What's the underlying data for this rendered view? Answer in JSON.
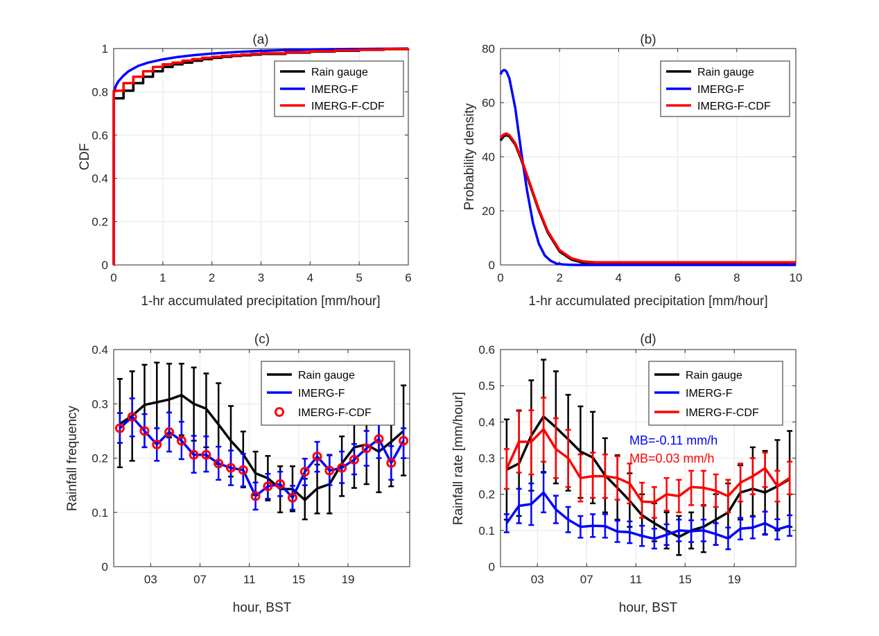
{
  "colors": {
    "gauge": "#000000",
    "imerg": "#0000ff",
    "imerg_cdf": "#ff0000"
  },
  "chart_data": [
    {
      "panel": "a",
      "type": "line",
      "title": "(a)",
      "xlabel": "1-hr accumulated precipitation [mm/hour]",
      "ylabel": "CDF",
      "xlim": [
        0,
        6
      ],
      "ylim": [
        0,
        1
      ],
      "xticks": [
        "0",
        "1",
        "2",
        "3",
        "4",
        "5",
        "6"
      ],
      "yticks": [
        "0",
        "0.2",
        "0.4",
        "0.6",
        "0.8",
        "1"
      ],
      "grid": true,
      "legend": {
        "location": "top-right",
        "entries": [
          "Rain gauge",
          "IMERG-F",
          "IMERG-F-CDF"
        ]
      },
      "series": [
        {
          "name": "Rain gauge",
          "color": "black",
          "step": true,
          "x": [
            0,
            0.001,
            0.2,
            0.2,
            0.4,
            0.6,
            0.8,
            1.0,
            1.2,
            1.4,
            1.6,
            1.8,
            2.0,
            2.2,
            2.4,
            2.6,
            2.8,
            3.0,
            3.5,
            4.0,
            4.5,
            5.0,
            5.5,
            6.0
          ],
          "y": [
            0,
            0.77,
            0.77,
            0.805,
            0.84,
            0.87,
            0.895,
            0.915,
            0.927,
            0.935,
            0.944,
            0.951,
            0.957,
            0.962,
            0.966,
            0.969,
            0.972,
            0.975,
            0.981,
            0.986,
            0.99,
            0.994,
            0.997,
            1.0
          ]
        },
        {
          "name": "IMERG-F",
          "color": "blue",
          "x": [
            0,
            0.001,
            0.05,
            0.1,
            0.2,
            0.3,
            0.5,
            0.7,
            1.0,
            1.3,
            1.6,
            2.0,
            2.5,
            3.0,
            3.5,
            4.0,
            5.0,
            6.0
          ],
          "y": [
            0,
            0.8,
            0.83,
            0.85,
            0.875,
            0.895,
            0.92,
            0.935,
            0.95,
            0.961,
            0.969,
            0.977,
            0.984,
            0.989,
            0.993,
            0.996,
            0.998,
            1.0
          ]
        },
        {
          "name": "IMERG-F-CDF",
          "color": "red",
          "step": true,
          "x": [
            0,
            0.001,
            0.2,
            0.4,
            0.6,
            0.8,
            1.0,
            1.2,
            1.4,
            1.6,
            1.8,
            2.0,
            2.2,
            2.4,
            2.6,
            2.8,
            3.0,
            3.5,
            4.0,
            4.5,
            5.0,
            5.5,
            6.0
          ],
          "y": [
            0,
            0.805,
            0.84,
            0.87,
            0.895,
            0.915,
            0.927,
            0.935,
            0.944,
            0.951,
            0.957,
            0.962,
            0.966,
            0.969,
            0.972,
            0.975,
            0.978,
            0.983,
            0.988,
            0.992,
            0.995,
            0.998,
            1.0
          ]
        }
      ]
    },
    {
      "panel": "b",
      "type": "line",
      "title": "(b)",
      "xlabel": "1-hr accumulated precipitation [mm/hour]",
      "ylabel": "Probability density",
      "xlim": [
        0,
        10
      ],
      "ylim": [
        0,
        80
      ],
      "xticks": [
        "0",
        "2",
        "4",
        "6",
        "8",
        "10"
      ],
      "yticks": [
        "0",
        "20",
        "40",
        "60",
        "80"
      ],
      "grid": true,
      "legend": {
        "location": "top-right",
        "entries": [
          "Rain gauge",
          "IMERG-F",
          "IMERG-F-CDF"
        ]
      },
      "series": [
        {
          "name": "Rain gauge",
          "color": "black",
          "x": [
            0,
            0.1,
            0.2,
            0.3,
            0.5,
            0.7,
            1.0,
            1.3,
            1.6,
            2.0,
            2.4,
            2.8,
            3.2,
            3.6,
            4,
            6,
            8,
            10
          ],
          "y": [
            46,
            47.5,
            48,
            47.5,
            44.5,
            39,
            29.5,
            20,
            12,
            5,
            2,
            0.8,
            0.5,
            0.5,
            0.5,
            0.5,
            0.5,
            0.5
          ]
        },
        {
          "name": "IMERG-F",
          "color": "blue",
          "x": [
            0,
            0.05,
            0.1,
            0.15,
            0.2,
            0.3,
            0.5,
            0.7,
            0.9,
            1.1,
            1.3,
            1.5,
            1.7,
            1.9,
            2.1,
            2.3,
            2.6,
            3,
            4,
            6,
            8,
            10
          ],
          "y": [
            70.5,
            71.5,
            72,
            72,
            71.5,
            69,
            58,
            42,
            27.5,
            15.5,
            7.8,
            3.5,
            1.5,
            0.5,
            0.2,
            0.05,
            0,
            0,
            0,
            0,
            0,
            0
          ]
        },
        {
          "name": "IMERG-F-CDF",
          "color": "red",
          "x": [
            0,
            0.1,
            0.2,
            0.3,
            0.5,
            0.7,
            1.0,
            1.3,
            1.6,
            2.0,
            2.4,
            2.8,
            3.2,
            3.6,
            4,
            6,
            8,
            10
          ],
          "y": [
            47,
            48.2,
            48.6,
            48,
            45,
            39.5,
            30,
            20.5,
            12.5,
            5.5,
            2.5,
            1.3,
            1,
            1,
            1,
            1,
            1,
            1
          ]
        }
      ]
    },
    {
      "panel": "c",
      "type": "line",
      "title": "(c)",
      "xlabel": "hour, BST",
      "ylabel": "Rainfall frequency",
      "xlim": [
        0,
        24
      ],
      "ylim": [
        0,
        0.4
      ],
      "xticks": [
        "03",
        "07",
        "11",
        "15",
        "19"
      ],
      "xtick_values": [
        3,
        7,
        11,
        15,
        19
      ],
      "yticks": [
        "0",
        "0.1",
        "0.2",
        "0.3",
        "0.4"
      ],
      "grid": true,
      "legend": {
        "location": "top-right",
        "entries": [
          "Rain gauge",
          "IMERG-F",
          "IMERG-F-CDF"
        ]
      },
      "x": [
        0.5,
        1.5,
        2.5,
        3.5,
        4.5,
        5.5,
        6.5,
        7.5,
        8.5,
        9.5,
        10.5,
        11.5,
        12.5,
        13.5,
        14.5,
        15.5,
        16.5,
        17.5,
        18.5,
        19.5,
        20.5,
        21.5,
        22.5,
        23.5
      ],
      "series": [
        {
          "name": "Rain gauge",
          "color": "black",
          "style": "line+errorbar",
          "values": [
            0.263,
            0.278,
            0.298,
            0.303,
            0.308,
            0.316,
            0.3,
            0.291,
            0.262,
            0.232,
            0.207,
            0.172,
            0.163,
            0.143,
            0.143,
            0.123,
            0.144,
            0.152,
            0.19,
            0.22,
            0.225,
            0.212,
            0.23,
            0.25
          ],
          "lower": [
            0.183,
            0.195,
            0.22,
            0.23,
            0.238,
            0.242,
            0.232,
            0.22,
            0.189,
            0.166,
            0.146,
            0.132,
            0.122,
            0.1,
            0.102,
            0.087,
            0.098,
            0.098,
            0.13,
            0.145,
            0.152,
            0.137,
            0.148,
            0.168
          ],
          "upper": [
            0.346,
            0.36,
            0.372,
            0.376,
            0.374,
            0.374,
            0.367,
            0.356,
            0.338,
            0.296,
            0.249,
            0.212,
            0.204,
            0.185,
            0.185,
            0.162,
            0.188,
            0.206,
            0.24,
            0.293,
            0.31,
            0.295,
            0.31,
            0.334
          ]
        },
        {
          "name": "IMERG-F",
          "color": "blue",
          "style": "line+errorbar",
          "values": [
            0.255,
            0.276,
            0.25,
            0.225,
            0.248,
            0.232,
            0.206,
            0.206,
            0.19,
            0.182,
            0.178,
            0.13,
            0.148,
            0.152,
            0.127,
            0.175,
            0.203,
            0.177,
            0.182,
            0.197,
            0.218,
            0.235,
            0.191,
            0.232
          ],
          "lower": [
            0.228,
            0.24,
            0.22,
            0.195,
            0.212,
            0.198,
            0.173,
            0.175,
            0.16,
            0.15,
            0.148,
            0.105,
            0.125,
            0.13,
            0.105,
            0.15,
            0.175,
            0.15,
            0.154,
            0.17,
            0.186,
            0.2,
            0.16,
            0.2
          ],
          "upper": [
            0.283,
            0.31,
            0.281,
            0.255,
            0.284,
            0.267,
            0.241,
            0.24,
            0.221,
            0.214,
            0.208,
            0.155,
            0.171,
            0.175,
            0.149,
            0.199,
            0.23,
            0.205,
            0.212,
            0.226,
            0.25,
            0.268,
            0.222,
            0.255
          ]
        },
        {
          "name": "IMERG-F-CDF",
          "color": "red",
          "style": "circle-markers",
          "values": [
            0.255,
            0.276,
            0.25,
            0.225,
            0.248,
            0.232,
            0.206,
            0.206,
            0.19,
            0.182,
            0.178,
            0.13,
            0.148,
            0.152,
            0.127,
            0.175,
            0.203,
            0.177,
            0.182,
            0.197,
            0.218,
            0.235,
            0.191,
            0.232
          ]
        }
      ]
    },
    {
      "panel": "d",
      "type": "line",
      "title": "(d)",
      "xlabel": "hour, BST",
      "ylabel": "Rainfall rate [mm/hour]",
      "xlim": [
        0,
        24
      ],
      "ylim": [
        0,
        0.6
      ],
      "xticks": [
        "03",
        "07",
        "11",
        "15",
        "19"
      ],
      "xtick_values": [
        3,
        7,
        11,
        15,
        19
      ],
      "yticks": [
        "0",
        "0.1",
        "0.2",
        "0.3",
        "0.4",
        "0.5",
        "0.6"
      ],
      "grid": true,
      "legend": {
        "location": "top-right",
        "entries": [
          "Rain gauge",
          "IMERG-F",
          "IMERG-F-CDF"
        ]
      },
      "annotations": [
        {
          "text": "MB=-0.11 mm/h",
          "color": "blue"
        },
        {
          "text": "MB=0.03 mm/h",
          "color": "red"
        }
      ],
      "x": [
        0.5,
        1.5,
        2.5,
        3.5,
        4.5,
        5.5,
        6.5,
        7.5,
        8.5,
        9.5,
        10.5,
        11.5,
        12.5,
        13.5,
        14.5,
        15.5,
        16.5,
        17.5,
        18.5,
        19.5,
        20.5,
        21.5,
        22.5,
        23.5
      ],
      "series": [
        {
          "name": "Rain gauge",
          "color": "black",
          "style": "line+errorbar",
          "values": [
            0.268,
            0.285,
            0.362,
            0.415,
            0.385,
            0.352,
            0.318,
            0.302,
            0.252,
            0.218,
            0.182,
            0.142,
            0.12,
            0.1,
            0.082,
            0.1,
            0.11,
            0.13,
            0.15,
            0.205,
            0.215,
            0.205,
            0.222,
            0.242
          ],
          "lower": [
            0.13,
            0.14,
            0.21,
            0.26,
            0.23,
            0.21,
            0.19,
            0.175,
            0.15,
            0.13,
            0.11,
            0.085,
            0.07,
            0.05,
            0.032,
            0.05,
            0.04,
            0.06,
            0.08,
            0.13,
            0.14,
            0.09,
            0.1,
            0.11
          ],
          "upper": [
            0.407,
            0.432,
            0.515,
            0.572,
            0.54,
            0.475,
            0.443,
            0.428,
            0.355,
            0.308,
            0.258,
            0.2,
            0.175,
            0.15,
            0.14,
            0.15,
            0.17,
            0.2,
            0.23,
            0.28,
            0.33,
            0.32,
            0.35,
            0.375
          ]
        },
        {
          "name": "IMERG-F",
          "color": "blue",
          "style": "line+errorbar",
          "values": [
            0.12,
            0.168,
            0.173,
            0.205,
            0.158,
            0.13,
            0.11,
            0.113,
            0.112,
            0.097,
            0.095,
            0.085,
            0.077,
            0.088,
            0.1,
            0.098,
            0.1,
            0.09,
            0.078,
            0.105,
            0.108,
            0.12,
            0.103,
            0.113
          ],
          "lower": [
            0.095,
            0.12,
            0.115,
            0.15,
            0.12,
            0.095,
            0.08,
            0.082,
            0.08,
            0.068,
            0.065,
            0.057,
            0.05,
            0.06,
            0.07,
            0.068,
            0.07,
            0.06,
            0.048,
            0.075,
            0.078,
            0.088,
            0.075,
            0.085
          ],
          "upper": [
            0.145,
            0.215,
            0.23,
            0.262,
            0.196,
            0.165,
            0.14,
            0.145,
            0.145,
            0.127,
            0.125,
            0.113,
            0.105,
            0.117,
            0.13,
            0.128,
            0.13,
            0.12,
            0.108,
            0.135,
            0.138,
            0.152,
            0.131,
            0.142
          ]
        },
        {
          "name": "IMERG-F-CDF",
          "color": "red",
          "style": "line+errorbar",
          "values": [
            0.27,
            0.345,
            0.345,
            0.38,
            0.325,
            0.3,
            0.245,
            0.25,
            0.25,
            0.245,
            0.23,
            0.18,
            0.178,
            0.2,
            0.195,
            0.22,
            0.218,
            0.21,
            0.195,
            0.232,
            0.25,
            0.272,
            0.223,
            0.245
          ],
          "lower": [
            0.215,
            0.26,
            0.255,
            0.29,
            0.245,
            0.22,
            0.18,
            0.19,
            0.19,
            0.185,
            0.175,
            0.135,
            0.135,
            0.155,
            0.15,
            0.17,
            0.168,
            0.165,
            0.15,
            0.18,
            0.2,
            0.22,
            0.18,
            0.2
          ],
          "upper": [
            0.325,
            0.43,
            0.432,
            0.467,
            0.41,
            0.378,
            0.31,
            0.315,
            0.31,
            0.305,
            0.285,
            0.232,
            0.22,
            0.245,
            0.24,
            0.265,
            0.265,
            0.255,
            0.24,
            0.285,
            0.3,
            0.315,
            0.265,
            0.29
          ]
        }
      ]
    }
  ]
}
